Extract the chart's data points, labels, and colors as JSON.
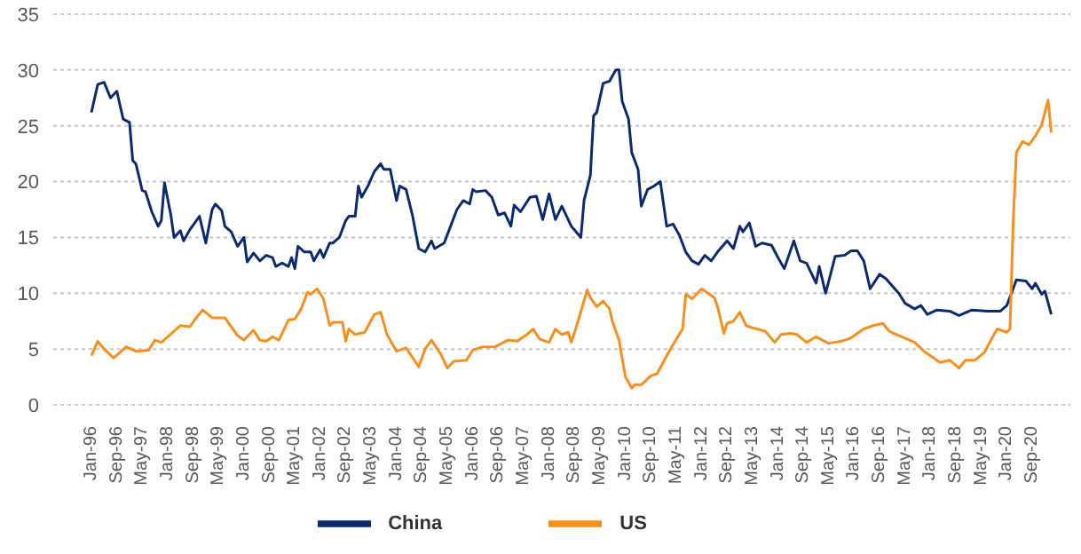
{
  "chart_data": {
    "type": "line",
    "grid": "y",
    "legend": "bottom",
    "marker": "none",
    "line_style": "solid",
    "ylim": [
      0,
      35
    ],
    "yticks": [
      0,
      5,
      10,
      15,
      20,
      25,
      30,
      35
    ],
    "xlim": [
      "1995-01",
      "2021-09"
    ],
    "xticks": [
      {
        "value": "1996-01",
        "label": "Jan-96"
      },
      {
        "value": "1996-09",
        "label": "Sep-96"
      },
      {
        "value": "1997-05",
        "label": "May-97"
      },
      {
        "value": "1998-01",
        "label": "Jan-98"
      },
      {
        "value": "1998-09",
        "label": "Sep-98"
      },
      {
        "value": "1999-05",
        "label": "May-99"
      },
      {
        "value": "2000-01",
        "label": "Jan-00"
      },
      {
        "value": "2000-09",
        "label": "Sep-00"
      },
      {
        "value": "2001-05",
        "label": "May-01"
      },
      {
        "value": "2002-01",
        "label": "Jan-02"
      },
      {
        "value": "2002-09",
        "label": "Sep-02"
      },
      {
        "value": "2003-05",
        "label": "May-03"
      },
      {
        "value": "2004-01",
        "label": "Jan-04"
      },
      {
        "value": "2004-09",
        "label": "Sep-04"
      },
      {
        "value": "2005-05",
        "label": "May-05"
      },
      {
        "value": "2006-01",
        "label": "Jan-06"
      },
      {
        "value": "2006-09",
        "label": "Sep-06"
      },
      {
        "value": "2007-05",
        "label": "May-07"
      },
      {
        "value": "2008-01",
        "label": "Jan-08"
      },
      {
        "value": "2008-09",
        "label": "Sep-08"
      },
      {
        "value": "2009-05",
        "label": "May-09"
      },
      {
        "value": "2010-01",
        "label": "Jan-10"
      },
      {
        "value": "2010-09",
        "label": "Sep-10"
      },
      {
        "value": "2011-05",
        "label": "May-11"
      },
      {
        "value": "2012-01",
        "label": "Jan-12"
      },
      {
        "value": "2012-09",
        "label": "Sep-12"
      },
      {
        "value": "2013-05",
        "label": "May-13"
      },
      {
        "value": "2014-01",
        "label": "Jan-14"
      },
      {
        "value": "2014-09",
        "label": "Sep-14"
      },
      {
        "value": "2015-05",
        "label": "May-15"
      },
      {
        "value": "2016-01",
        "label": "Jan-16"
      },
      {
        "value": "2016-09",
        "label": "Sep-16"
      },
      {
        "value": "2017-05",
        "label": "May-17"
      },
      {
        "value": "2018-01",
        "label": "Jan-18"
      },
      {
        "value": "2018-09",
        "label": "Sep-18"
      },
      {
        "value": "2019-05",
        "label": "May-19"
      },
      {
        "value": "2020-01",
        "label": "Jan-20"
      },
      {
        "value": "2020-09",
        "label": "Sep-20"
      }
    ],
    "series": [
      {
        "name": "China",
        "color": "#0d2a6e",
        "x": [
          "1996-01",
          "1996-03",
          "1996-05",
          "1996-07",
          "1996-09",
          "1996-11",
          "1997-01",
          "1997-02",
          "1997-03",
          "1997-05",
          "1997-06",
          "1997-08",
          "1997-10",
          "1997-11",
          "1997-12",
          "1998-02",
          "1998-03",
          "1998-05",
          "1998-06",
          "1998-08",
          "1998-11",
          "1999-01",
          "1999-03",
          "1999-04",
          "1999-06",
          "1999-07",
          "1999-09",
          "1999-11",
          "2000-01",
          "2000-02",
          "2000-04",
          "2000-06",
          "2000-08",
          "2000-10",
          "2000-11",
          "2001-01",
          "2001-03",
          "2001-04",
          "2001-05",
          "2001-06",
          "2001-08",
          "2001-10",
          "2001-11",
          "2002-01",
          "2002-02",
          "2002-04",
          "2002-05",
          "2002-07",
          "2002-09",
          "2002-10",
          "2002-12",
          "2003-01",
          "2003-02",
          "2003-04",
          "2003-06",
          "2003-08",
          "2003-09",
          "2003-11",
          "2004-01",
          "2004-02",
          "2004-04",
          "2004-06",
          "2004-08",
          "2004-10",
          "2004-12",
          "2005-01",
          "2005-04",
          "2005-06",
          "2005-08",
          "2005-10",
          "2005-12",
          "2006-01",
          "2006-02",
          "2006-05",
          "2006-07",
          "2006-09",
          "2006-11",
          "2007-01",
          "2007-02",
          "2007-04",
          "2007-07",
          "2007-09",
          "2007-11",
          "2008-01",
          "2008-03",
          "2008-05",
          "2008-08",
          "2008-11",
          "2008-12",
          "2009-02",
          "2009-03",
          "2009-04",
          "2009-06",
          "2009-08",
          "2009-10",
          "2009-11",
          "2009-12",
          "2010-02",
          "2010-03",
          "2010-05",
          "2010-06",
          "2010-08",
          "2010-10",
          "2010-12",
          "2011-02",
          "2011-04",
          "2011-06",
          "2011-08",
          "2011-10",
          "2011-12",
          "2012-02",
          "2012-04",
          "2012-06",
          "2012-09",
          "2012-11",
          "2013-01",
          "2013-02",
          "2013-04",
          "2013-06",
          "2013-08",
          "2013-11",
          "2014-01",
          "2014-03",
          "2014-06",
          "2014-08",
          "2014-10",
          "2015-01",
          "2015-02",
          "2015-04",
          "2015-07",
          "2015-10",
          "2015-12",
          "2016-02",
          "2016-04",
          "2016-06",
          "2016-09",
          "2016-11",
          "2017-03",
          "2017-05",
          "2017-08",
          "2017-10",
          "2017-12",
          "2018-03",
          "2018-07",
          "2018-10",
          "2019-02",
          "2019-07",
          "2019-11",
          "2020-01",
          "2020-03",
          "2020-04",
          "2020-07",
          "2020-09",
          "2020-10",
          "2020-12",
          "2021-01",
          "2021-03"
        ],
        "values": [
          26.2,
          28.7,
          28.9,
          27.5,
          28.1,
          25.6,
          25.3,
          21.9,
          21.6,
          19.2,
          19.1,
          17.3,
          16.0,
          16.5,
          19.9,
          17.0,
          15.0,
          15.6,
          14.7,
          15.7,
          16.9,
          14.5,
          17.5,
          18.0,
          17.4,
          16.0,
          15.5,
          14.2,
          15.0,
          12.8,
          13.6,
          12.9,
          13.4,
          13.2,
          12.4,
          12.7,
          12.4,
          13.2,
          12.2,
          14.2,
          13.7,
          13.7,
          12.9,
          13.9,
          13.2,
          14.5,
          14.5,
          15.0,
          16.5,
          16.9,
          16.9,
          19.6,
          18.6,
          19.6,
          20.9,
          21.6,
          21.1,
          21.1,
          18.3,
          19.6,
          19.3,
          17.0,
          14.0,
          13.7,
          14.7,
          14.0,
          14.5,
          16.0,
          17.5,
          18.3,
          18.0,
          19.3,
          19.1,
          19.2,
          18.6,
          17.0,
          17.2,
          16.0,
          17.9,
          17.3,
          18.6,
          18.7,
          16.6,
          18.9,
          16.6,
          17.8,
          16.0,
          15.0,
          18.3,
          20.6,
          25.9,
          26.2,
          28.8,
          29.0,
          30.0,
          30.0,
          27.2,
          25.6,
          22.6,
          21.1,
          17.8,
          19.3,
          19.6,
          20.0,
          16.0,
          16.2,
          15.2,
          13.7,
          12.9,
          12.6,
          13.4,
          12.9,
          13.7,
          14.7,
          14.0,
          16.0,
          15.5,
          16.3,
          14.2,
          14.5,
          14.3,
          13.2,
          12.2,
          14.7,
          12.9,
          12.7,
          10.9,
          12.4,
          10.0,
          13.3,
          13.4,
          13.8,
          13.8,
          12.9,
          10.4,
          11.7,
          11.3,
          10.0,
          9.1,
          8.6,
          8.9,
          8.1,
          8.5,
          8.4,
          8.0,
          8.5,
          8.4,
          8.4,
          8.9,
          10.4,
          11.2,
          11.1,
          10.4,
          10.9,
          9.9,
          10.2,
          8.1
        ]
      },
      {
        "name": "US",
        "color": "#f5901e",
        "x": [
          "1996-01",
          "1996-03",
          "1996-05",
          "1996-08",
          "1996-12",
          "1997-03",
          "1997-07",
          "1997-09",
          "1997-11",
          "1998-03",
          "1998-05",
          "1998-08",
          "1998-10",
          "1998-12",
          "1999-03",
          "1999-07",
          "1999-11",
          "2000-01",
          "2000-04",
          "2000-06",
          "2000-08",
          "2000-10",
          "2000-12",
          "2001-03",
          "2001-05",
          "2001-07",
          "2001-09",
          "2001-10",
          "2001-12",
          "2002-02",
          "2002-04",
          "2002-05",
          "2002-08",
          "2002-09",
          "2002-10",
          "2002-12",
          "2003-03",
          "2003-06",
          "2003-08",
          "2003-10",
          "2004-01",
          "2004-04",
          "2004-08",
          "2004-10",
          "2004-12",
          "2005-03",
          "2005-05",
          "2005-07",
          "2005-11",
          "2006-01",
          "2006-04",
          "2006-08",
          "2006-12",
          "2007-03",
          "2007-06",
          "2007-08",
          "2007-10",
          "2008-01",
          "2008-03",
          "2008-05",
          "2008-07",
          "2008-08",
          "2008-10",
          "2009-01",
          "2009-02",
          "2009-04",
          "2009-06",
          "2009-08",
          "2009-09",
          "2009-11",
          "2010-01",
          "2010-02",
          "2010-03",
          "2010-04",
          "2010-06",
          "2010-09",
          "2010-11",
          "2011-02",
          "2011-04",
          "2011-07",
          "2011-08",
          "2011-10",
          "2012-01",
          "2012-05",
          "2012-06",
          "2012-08",
          "2012-09",
          "2012-11",
          "2013-01",
          "2013-03",
          "2013-05",
          "2013-09",
          "2013-12",
          "2014-02",
          "2014-05",
          "2014-07",
          "2014-10",
          "2015-01",
          "2015-05",
          "2015-09",
          "2015-12",
          "2016-04",
          "2016-07",
          "2016-10",
          "2016-12",
          "2017-04",
          "2017-08",
          "2017-11",
          "2018-02",
          "2018-04",
          "2018-07",
          "2018-10",
          "2018-12",
          "2019-03",
          "2019-06",
          "2019-08",
          "2019-10",
          "2020-01",
          "2020-02",
          "2020-03",
          "2020-04",
          "2020-06",
          "2020-08",
          "2020-10",
          "2020-12",
          "2021-02",
          "2021-03"
        ],
        "values": [
          4.4,
          5.7,
          5.0,
          4.2,
          5.2,
          4.8,
          4.9,
          5.8,
          5.6,
          6.6,
          7.1,
          7.0,
          7.8,
          8.5,
          7.8,
          7.8,
          6.2,
          5.8,
          6.7,
          5.8,
          5.7,
          6.1,
          5.8,
          7.6,
          7.7,
          8.6,
          10.1,
          9.9,
          10.4,
          9.5,
          7.1,
          7.4,
          7.4,
          5.7,
          6.8,
          6.3,
          6.5,
          8.1,
          8.3,
          6.3,
          4.8,
          5.1,
          3.4,
          5.0,
          5.8,
          4.5,
          3.3,
          3.9,
          4.0,
          4.9,
          5.2,
          5.2,
          5.8,
          5.7,
          6.3,
          6.8,
          5.9,
          5.6,
          6.8,
          6.3,
          6.5,
          5.6,
          7.4,
          10.3,
          9.6,
          8.8,
          9.3,
          8.6,
          7.4,
          5.8,
          2.5,
          2.0,
          1.5,
          1.8,
          1.8,
          2.6,
          2.8,
          4.4,
          5.4,
          6.8,
          9.9,
          9.5,
          10.4,
          9.6,
          8.8,
          6.4,
          7.3,
          7.5,
          8.3,
          7.1,
          6.9,
          6.6,
          5.6,
          6.3,
          6.4,
          6.3,
          5.6,
          6.1,
          5.5,
          5.7,
          6.0,
          6.8,
          7.1,
          7.3,
          6.6,
          6.1,
          5.6,
          4.8,
          4.2,
          3.8,
          4.0,
          3.3,
          4.0,
          4.0,
          4.7,
          5.8,
          6.8,
          6.5,
          6.8,
          16.2,
          22.6,
          23.6,
          23.3,
          24.1,
          25.1,
          27.3,
          24.4
        ]
      }
    ]
  }
}
